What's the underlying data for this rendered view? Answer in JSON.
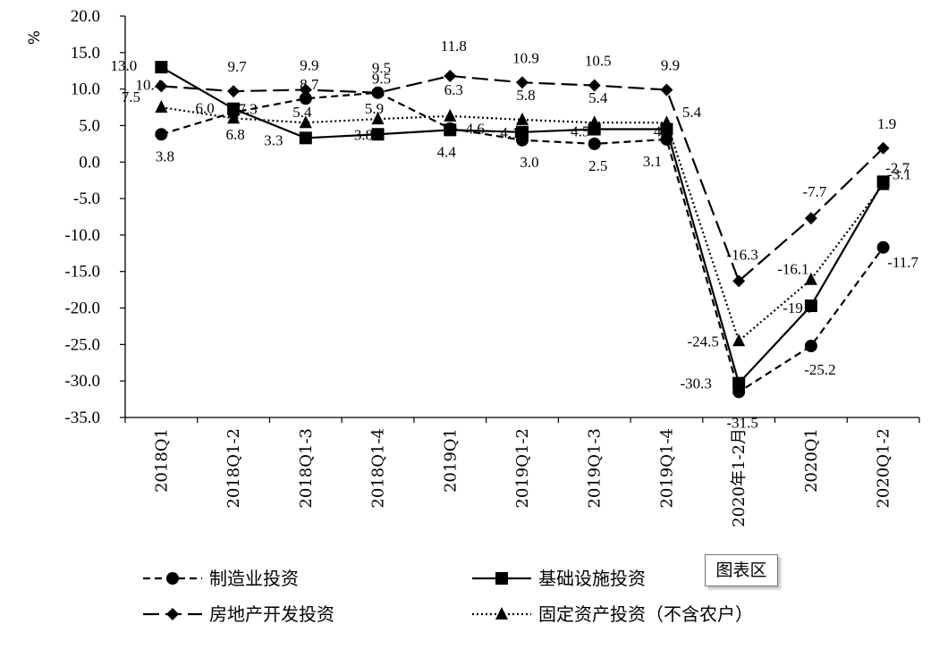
{
  "chart_data": {
    "type": "line",
    "ylabel": "%",
    "ylim": [
      -35,
      20
    ],
    "ytick_step": 5,
    "categories": [
      "2018Q1",
      "2018Q1-2",
      "2018Q1-3",
      "2018Q1-4",
      "2019Q1",
      "2019Q1-2",
      "2019Q1-3",
      "2019Q1-4",
      "2020年1-2月",
      "2020Q1",
      "2020Q1-2"
    ],
    "series": [
      {
        "name": "制造业投资",
        "style": "dashed",
        "marker": "circle",
        "values": [
          3.8,
          6.8,
          8.7,
          9.5,
          4.6,
          3.0,
          2.5,
          3.1,
          -31.5,
          -25.2,
          -11.7
        ],
        "labels": [
          "3.8",
          "6.8",
          "8.7",
          "9.5",
          "4.6",
          "3.0",
          "2.5",
          "3.1",
          "-31.5",
          "-25.2",
          "-11.7"
        ]
      },
      {
        "name": "基础设施投资",
        "style": "solid",
        "marker": "square",
        "values": [
          13.0,
          7.3,
          3.3,
          3.8,
          4.4,
          4.1,
          4.5,
          4.5,
          -30.3,
          -19.7,
          -2.7
        ],
        "labels": [
          "13.0",
          "7.3",
          "3.3",
          "3.8",
          "4.4",
          "4.1",
          "4.5",
          "4.5",
          "-30.3",
          "-19.7",
          "-2.7"
        ]
      },
      {
        "name": "房地产开发投资",
        "style": "longdash",
        "marker": "diamond",
        "values": [
          10.4,
          9.7,
          9.9,
          9.5,
          11.8,
          10.9,
          10.5,
          9.9,
          -16.3,
          -7.7,
          1.9
        ],
        "labels": [
          "10.4",
          "9.7",
          "9.9",
          "9.5",
          "11.8",
          "10.9",
          "10.5",
          "9.9",
          "-16.3",
          "-7.7",
          "1.9"
        ]
      },
      {
        "name": "固定资产投资（不含农户）",
        "style": "dotted",
        "marker": "triangle",
        "values": [
          7.5,
          6.0,
          5.4,
          5.9,
          6.3,
          5.8,
          5.4,
          5.4,
          -24.5,
          -16.1,
          -3.1
        ],
        "labels": [
          "7.5",
          "6.0",
          "5.4",
          "5.9",
          "6.3",
          "5.8",
          "5.4",
          "5.4",
          "-24.5",
          "-16.1",
          "-3.1"
        ]
      }
    ],
    "legend_position": "bottom",
    "grid": false
  },
  "ui": {
    "chart_area_label": "图表区"
  }
}
